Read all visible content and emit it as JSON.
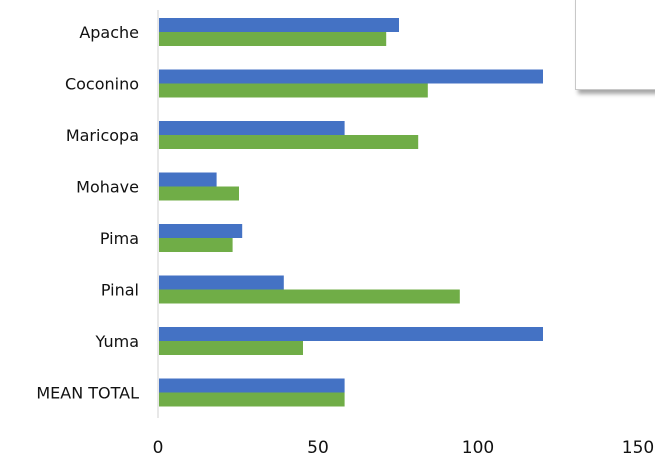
{
  "chart_data": {
    "type": "bar",
    "orientation": "horizontal",
    "categories": [
      "Apache",
      "Coconino",
      "Maricopa",
      "Mohave",
      "Pima",
      "Pinal",
      "Yuma",
      "MEAN TOTAL"
    ],
    "series": [
      {
        "color": "#4472C4",
        "values": [
          75,
          120,
          58,
          18,
          26,
          39,
          120,
          58
        ]
      },
      {
        "color": "#70AD47",
        "values": [
          71,
          84,
          81,
          25,
          23,
          94,
          45,
          58
        ]
      }
    ],
    "xticks": [
      "0",
      "50",
      "100",
      "150"
    ],
    "xlim": [
      0,
      150
    ],
    "grid": false,
    "legend": "top-right (cropped, no visible entries)"
  }
}
